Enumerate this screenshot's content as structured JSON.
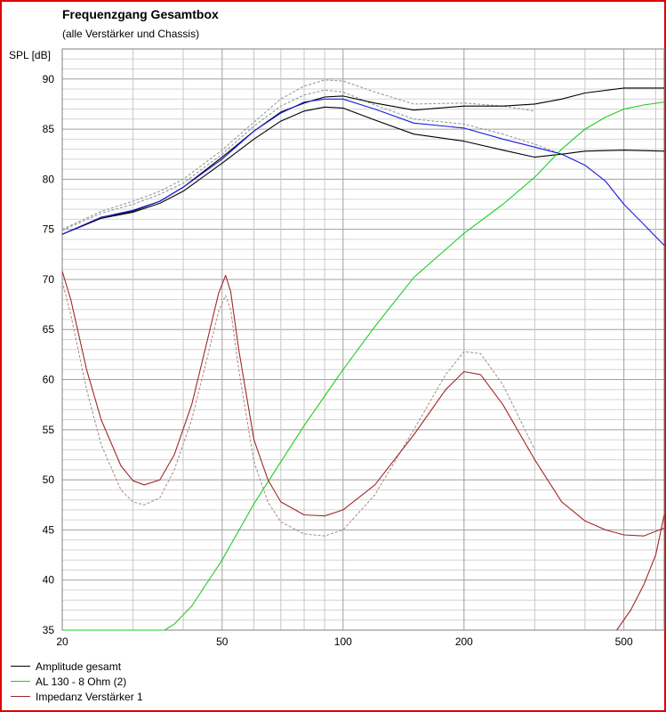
{
  "chart_data": {
    "type": "line",
    "title": "Frequenzgang Gesamtbox",
    "subtitle": "(alle Verstärker und Chassis)",
    "ylabel": "SPL [dB]",
    "xscale": "log",
    "xlim": [
      20,
      630
    ],
    "ylim": [
      35,
      93
    ],
    "xticks": [
      20,
      50,
      100,
      200,
      500
    ],
    "yticks": [
      35,
      40,
      45,
      50,
      55,
      60,
      65,
      70,
      75,
      80,
      85,
      90
    ],
    "grid": true,
    "legend_position": "bottom-left",
    "series": [
      {
        "name": "Amplitude gesamt",
        "color": "#000000",
        "style": "solid",
        "x": [
          20,
          25,
          30,
          35,
          40,
          50,
          60,
          70,
          80,
          90,
          100,
          120,
          150,
          200,
          250,
          300,
          350,
          400,
          500,
          630
        ],
        "y": [
          74.5,
          76.2,
          76.8,
          77.8,
          79.2,
          82.2,
          84.8,
          86.7,
          87.6,
          88.2,
          88.3,
          87.6,
          86.9,
          87.3,
          87.3,
          87.5,
          88.0,
          88.6,
          89.1,
          89.1
        ]
      },
      {
        "name": "",
        "color": "#000000",
        "style": "solid",
        "x": [
          20,
          25,
          30,
          35,
          40,
          50,
          60,
          70,
          80,
          90,
          100,
          120,
          150,
          200,
          250,
          300,
          350,
          400,
          500,
          630
        ],
        "y": [
          74.5,
          76.1,
          76.7,
          77.6,
          78.8,
          81.6,
          84.0,
          85.8,
          86.8,
          87.2,
          87.1,
          85.9,
          84.5,
          83.8,
          82.9,
          82.2,
          82.5,
          82.8,
          82.9,
          82.8
        ]
      },
      {
        "name": "",
        "color": "#1a1ae0",
        "style": "solid",
        "x": [
          20,
          25,
          30,
          35,
          40,
          50,
          60,
          70,
          80,
          90,
          100,
          120,
          150,
          200,
          250,
          300,
          350,
          400,
          450,
          500,
          560,
          630
        ],
        "y": [
          74.5,
          76.2,
          76.9,
          77.8,
          79.2,
          82.0,
          84.8,
          86.6,
          87.7,
          88.0,
          88.0,
          87.0,
          85.6,
          85.1,
          84.0,
          83.2,
          82.5,
          81.4,
          79.8,
          77.5,
          75.5,
          73.4
        ]
      },
      {
        "name": "",
        "color": "#999999",
        "style": "dashed",
        "x": [
          20,
          25,
          30,
          35,
          40,
          50,
          60,
          70,
          80,
          90,
          100,
          120,
          150,
          200,
          250,
          300
        ],
        "y": [
          75.0,
          76.8,
          77.8,
          78.8,
          80.0,
          82.9,
          85.7,
          88.0,
          89.3,
          89.9,
          89.8,
          88.7,
          87.5,
          87.6,
          87.3,
          86.8
        ]
      },
      {
        "name": "",
        "color": "#999999",
        "style": "dashed",
        "x": [
          20,
          25,
          30,
          35,
          40,
          50,
          60,
          70,
          80,
          90,
          100,
          120,
          150,
          200,
          250,
          300,
          350
        ],
        "y": [
          74.9,
          76.6,
          77.5,
          78.5,
          79.6,
          82.5,
          85.3,
          87.3,
          88.4,
          88.9,
          88.7,
          87.4,
          86.0,
          85.5,
          84.5,
          83.5,
          82.5
        ]
      },
      {
        "name": "AL 130 - 8 Ohm (2)",
        "color": "#22cc22",
        "style": "solid",
        "x": [
          20,
          30,
          36,
          38,
          42,
          50,
          60,
          70,
          80,
          100,
          120,
          150,
          200,
          250,
          300,
          350,
          400,
          450,
          500,
          560,
          630
        ],
        "y": [
          35.0,
          35.0,
          35.0,
          35.6,
          37.4,
          42.0,
          47.6,
          51.8,
          55.4,
          61.0,
          65.3,
          70.2,
          74.6,
          77.5,
          80.2,
          83.0,
          85.0,
          86.2,
          87.0,
          87.4,
          87.7
        ]
      },
      {
        "name": "Impedanz Verstärker 1",
        "color": "#a02828",
        "style": "solid",
        "x": [
          20,
          21,
          23,
          25,
          28,
          30,
          32,
          35,
          38,
          42,
          46,
          49,
          51,
          52.5,
          55,
          60,
          65,
          70,
          80,
          90,
          100,
          120,
          150,
          180,
          200,
          220,
          250,
          300,
          350,
          400,
          450,
          500,
          560,
          630
        ],
        "y": [
          70.8,
          68.0,
          61.0,
          56.0,
          51.4,
          49.9,
          49.5,
          50.0,
          52.5,
          57.5,
          64.0,
          68.6,
          70.4,
          68.8,
          63.0,
          54.0,
          50.0,
          47.8,
          46.5,
          46.4,
          47.0,
          49.5,
          54.5,
          59.0,
          60.8,
          60.5,
          57.5,
          52.0,
          47.8,
          45.9,
          45.0,
          44.5,
          44.4,
          45.2
        ]
      },
      {
        "name": "",
        "color": "#b09090",
        "style": "dashed",
        "x": [
          20,
          21,
          23,
          25,
          28,
          30,
          32,
          35,
          38,
          42,
          46,
          49,
          51,
          52.5,
          55,
          60,
          65,
          70,
          80,
          90,
          100,
          120,
          150,
          180,
          200,
          220,
          250,
          300
        ],
        "y": [
          69.8,
          66.5,
          59.0,
          53.5,
          49.0,
          47.8,
          47.5,
          48.2,
          51.0,
          56.0,
          62.3,
          66.8,
          68.4,
          67.0,
          61.0,
          51.8,
          47.8,
          45.8,
          44.6,
          44.4,
          45.0,
          48.5,
          55.0,
          60.5,
          62.8,
          62.6,
          59.5,
          53.0
        ]
      },
      {
        "name": "",
        "color": "#a02828",
        "style": "solid",
        "x": [
          480,
          520,
          560,
          600,
          630
        ],
        "y": [
          35.0,
          37.0,
          39.5,
          42.5,
          46.5
        ]
      }
    ]
  }
}
